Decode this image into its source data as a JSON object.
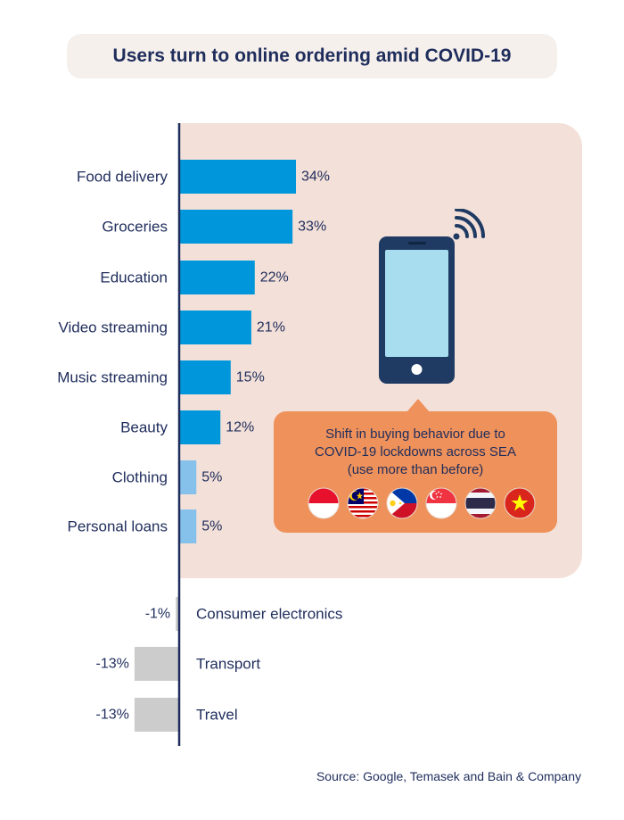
{
  "title": "Users turn to online ordering amid COVID-19",
  "source": "Source: Google, Temasek and Bain & Company",
  "callout": {
    "lines": [
      "Shift in buying behavior due to",
      "COVID-19 lockdowns across SEA",
      "(use more than before)"
    ],
    "flags": [
      "indonesia-flag-icon",
      "malaysia-flag-icon",
      "philippines-flag-icon",
      "singapore-flag-icon",
      "thailand-flag-icon",
      "vietnam-flag-icon"
    ],
    "phone_icon": "smartphone-wifi-icon"
  },
  "colors": {
    "strong_positive": "#0096db",
    "weak_positive": "#85c1ea",
    "negative": "#cccccc",
    "axis": "#1f2d5c",
    "panel": "#f3e0d8",
    "callout": "#ef915a"
  },
  "chart_data": {
    "type": "bar",
    "orientation": "horizontal",
    "title": "Users turn to online ordering amid COVID-19",
    "xlabel": "",
    "ylabel": "",
    "unit": "%",
    "xlim": [
      -13,
      34
    ],
    "categories": [
      "Food delivery",
      "Groceries",
      "Education",
      "Video streaming",
      "Music streaming",
      "Beauty",
      "Clothing",
      "Personal loans",
      "Consumer electronics",
      "Transport",
      "Travel"
    ],
    "values": [
      34,
      33,
      22,
      21,
      15,
      12,
      5,
      5,
      -1,
      -13,
      -13
    ],
    "labels": [
      "34%",
      "33%",
      "22%",
      "21%",
      "15%",
      "12%",
      "5%",
      "5%",
      "-1%",
      "-13%",
      "-13%"
    ]
  }
}
